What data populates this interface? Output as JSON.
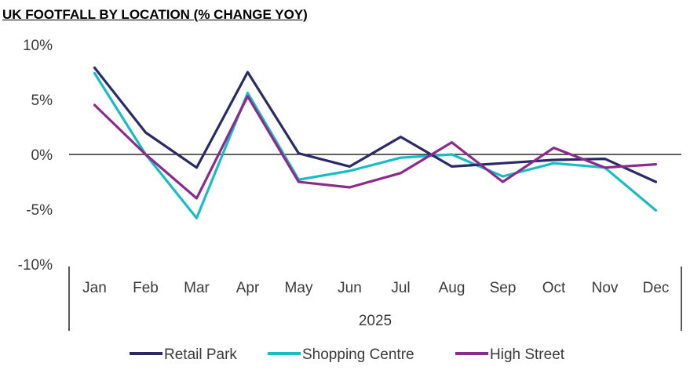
{
  "chart_data": {
    "type": "line",
    "title": "UK FOOTFALL BY LOCATION (% CHANGE YOY)",
    "xlabel": "2025",
    "ylabel": "",
    "categories": [
      "Jan",
      "Feb",
      "Mar",
      "Apr",
      "May",
      "Jun",
      "Jul",
      "Aug",
      "Sep",
      "Oct",
      "Nov",
      "Dec"
    ],
    "yticks": [
      "10%",
      "5%",
      "0%",
      "-5%",
      "-10%"
    ],
    "ylim": [
      -10,
      10
    ],
    "grid": false,
    "legend_position": "bottom",
    "series": [
      {
        "name": "Retail Park",
        "color": "#2a2a66",
        "values": [
          7.9,
          2.0,
          -1.2,
          7.5,
          0.1,
          -1.1,
          1.6,
          -1.1,
          -0.8,
          -0.5,
          -0.4,
          -2.5
        ]
      },
      {
        "name": "Shopping Centre",
        "color": "#17bcc4",
        "values": [
          7.4,
          0.0,
          -5.8,
          5.6,
          -2.3,
          -1.5,
          -0.3,
          0.0,
          -2.0,
          -0.8,
          -1.2,
          -5.1
        ]
      },
      {
        "name": "High Street",
        "color": "#8c2a8c",
        "values": [
          4.5,
          0.0,
          -4.0,
          5.3,
          -2.5,
          -3.0,
          -1.7,
          1.1,
          -2.5,
          0.6,
          -1.2,
          -0.9
        ]
      }
    ]
  }
}
